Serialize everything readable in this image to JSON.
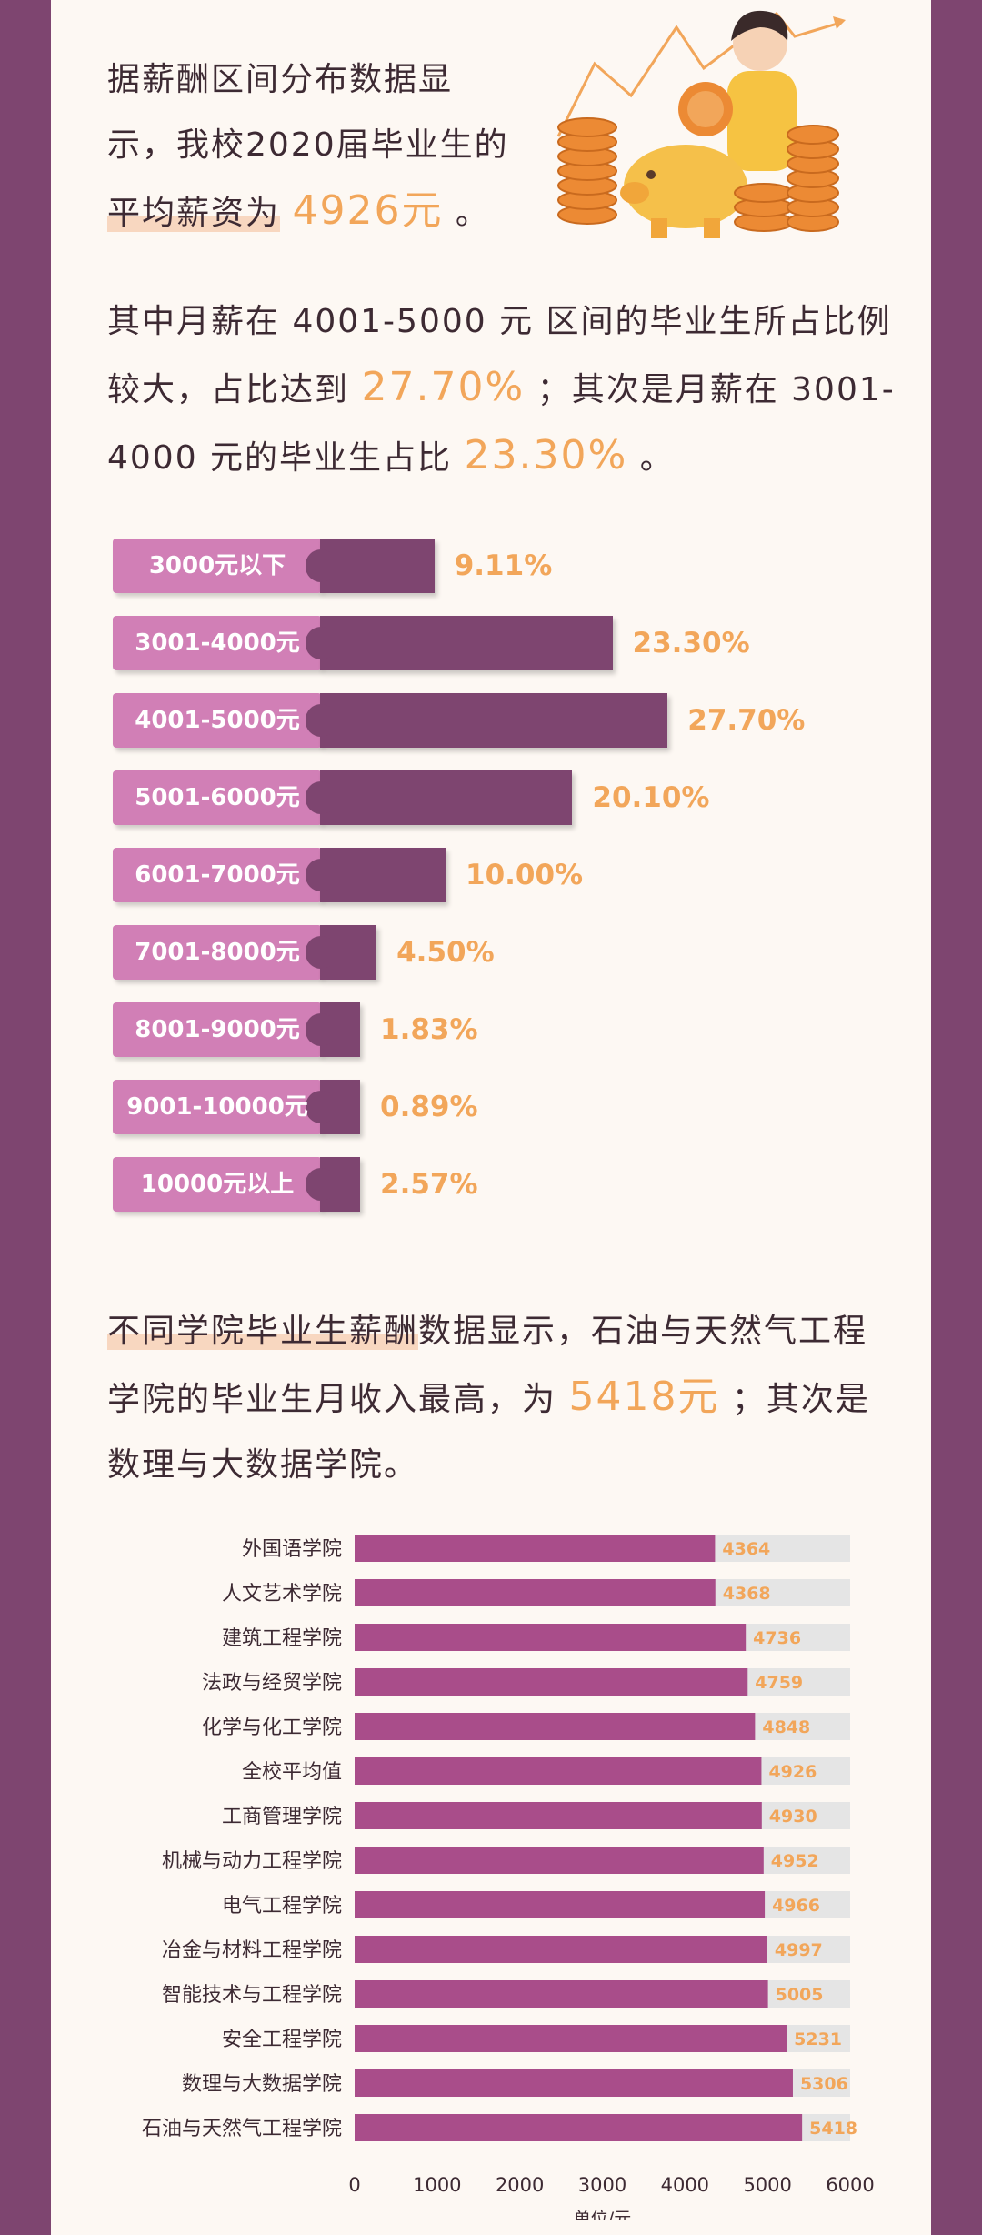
{
  "intro": {
    "line1": "据薪酬区间分布数据显",
    "line2": "示，我校2020届毕业生的",
    "line3a": "平均薪资为",
    "avg_salary": "4926元",
    "line3b": "。"
  },
  "para2": {
    "t1": "其中月薪在 4001-5000 元 区间的毕业生所占比例",
    "t2a": "较大，占比达到",
    "v1": "27.70%",
    "t2b": "；其次是月薪在 3001-",
    "t3a": "4000 元的毕业生占比",
    "v2": "23.30%",
    "t3b": "。"
  },
  "range_chart": {
    "type": "bar",
    "categories": [
      "3000元以下",
      "3001-4000元",
      "4001-5000元",
      "5001-6000元",
      "6001-7000元",
      "7001-8000元",
      "8001-9000元",
      "9001-10000元",
      "10000元以上"
    ],
    "values": [
      9.11,
      23.3,
      27.7,
      20.1,
      10.0,
      4.5,
      1.83,
      0.89,
      2.57
    ],
    "labels": [
      "9.11%",
      "23.30%",
      "27.70%",
      "20.10%",
      "10.00%",
      "4.50%",
      "1.83%",
      "0.89%",
      "2.57%"
    ],
    "colors": {
      "category_pill": "#d17fb6",
      "bar": "#7e4570",
      "value_text": "#f2a65a"
    }
  },
  "para3": {
    "t1a": "不同学院毕业生薪酬",
    "t1b": "数据显示，石油与天然气工程",
    "t2a": "学院的毕业生月收入最高，为",
    "v": "5418元",
    "t2b": "；其次是",
    "t3": "数理与大数据学院。"
  },
  "chart_data": {
    "type": "bar",
    "orientation": "horizontal",
    "categories": [
      "外国语学院",
      "人文艺术学院",
      "建筑工程学院",
      "法政与经贸学院",
      "化学与化工学院",
      "全校平均值",
      "工商管理学院",
      "机械与动力工程学院",
      "电气工程学院",
      "冶金与材料工程学院",
      "智能技术与工程学院",
      "安全工程学院",
      "数理与大数据学院",
      "石油与天然气工程学院"
    ],
    "values": [
      4364,
      4368,
      4736,
      4759,
      4848,
      4926,
      4930,
      4952,
      4966,
      4997,
      5005,
      5231,
      5306,
      5418
    ],
    "xlim": [
      0,
      6000
    ],
    "xticks": [
      "0",
      "1000",
      "2000",
      "3000",
      "4000",
      "5000",
      "6000"
    ],
    "xlabel": "单位/元",
    "ylabel": "",
    "title": "",
    "grid": false,
    "colors": {
      "bar": "#a94d8a",
      "track": "#e5e5e5",
      "label": "#f2a65a"
    }
  },
  "colors": {
    "frame": "#7e4570",
    "background": "#fdf8f3",
    "accent": "#f2a65a"
  }
}
